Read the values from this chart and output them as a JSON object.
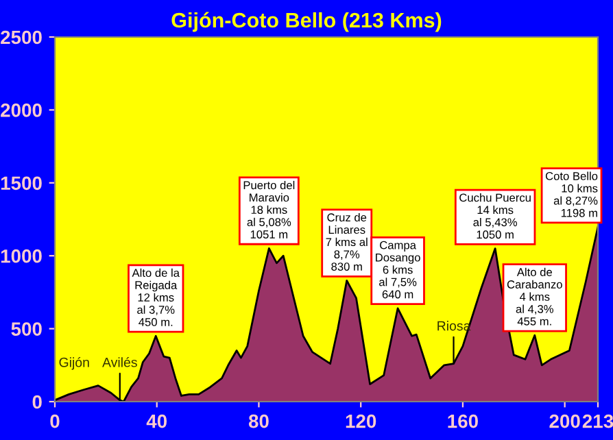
{
  "chart_data": {
    "type": "area",
    "title": "Gijón-Coto Bello (213 Kms)",
    "x": [
      0,
      5.5,
      11,
      17,
      22,
      25.5,
      27,
      30,
      32.7,
      34.5,
      37,
      39.6,
      42.7,
      45,
      47.3,
      49.6,
      52.7,
      56.4,
      61,
      65.5,
      68,
      71.3,
      73,
      75.5,
      80,
      84,
      87,
      89.6,
      92,
      94.7,
      97.4,
      101,
      108,
      111,
      114.5,
      118.2,
      123.6,
      129,
      134.5,
      140,
      141.8,
      147.3,
      152.7,
      156.4,
      160,
      167.3,
      172.7,
      176.4,
      180,
      184.5,
      188.2,
      191,
      194.5,
      201.8,
      208.2,
      213
    ],
    "series": [
      {
        "color": "#993366",
        "values": [
          10,
          50,
          80,
          110,
          60,
          10,
          0,
          100,
          160,
          270,
          330,
          450,
          310,
          300,
          160,
          40,
          50,
          50,
          100,
          160,
          250,
          350,
          300,
          380,
          760,
          1051,
          950,
          1000,
          830,
          640,
          450,
          340,
          260,
          500,
          830,
          710,
          120,
          180,
          640,
          450,
          460,
          160,
          250,
          260,
          380,
          780,
          1050,
          640,
          320,
          290,
          455,
          250,
          290,
          350,
          820,
          1198
        ]
      }
    ],
    "xlim": [
      0,
      213
    ],
    "xticks": [
      0,
      40,
      80,
      120,
      160,
      200,
      213
    ],
    "ylim": [
      0,
      2500
    ],
    "yticks": [
      0,
      500,
      1000,
      1500,
      2000,
      2500
    ],
    "grid": false,
    "legend": false,
    "annotations": [
      {
        "text": "Gijón",
        "x": 0,
        "y": 10
      },
      {
        "text": "Avilés",
        "x": 25.5,
        "y": 10
      },
      {
        "text": "Alto de la\nReigada\n12 kms\nal 3,7%\n450 m.",
        "x": 39.6,
        "y": 450
      },
      {
        "text": "Puerto del\nMaravio\n18 kms\nal 5,08%\n1051 m",
        "x": 84,
        "y": 1051
      },
      {
        "text": "Cruz de\nLinares\n7 kms al\n8,7%\n830 m",
        "x": 114.5,
        "y": 830
      },
      {
        "text": "Campa\nDosango\n6 kms\nal 7,5%\n640 m",
        "x": 134.5,
        "y": 640
      },
      {
        "text": "Riosa",
        "x": 156.4,
        "y": 260
      },
      {
        "text": "Cuchu Puercu\n14 kms\nal 5,43%\n1050 m",
        "x": 172.7,
        "y": 1050
      },
      {
        "text": "Alto de\nCarabanzo\n4 kms\nal 4,3%\n455 m.",
        "x": 188.2,
        "y": 455
      },
      {
        "text": "Coto Bello\n10 kms\nal 8,27%\n1198 m",
        "x": 213,
        "y": 1198
      }
    ]
  }
}
